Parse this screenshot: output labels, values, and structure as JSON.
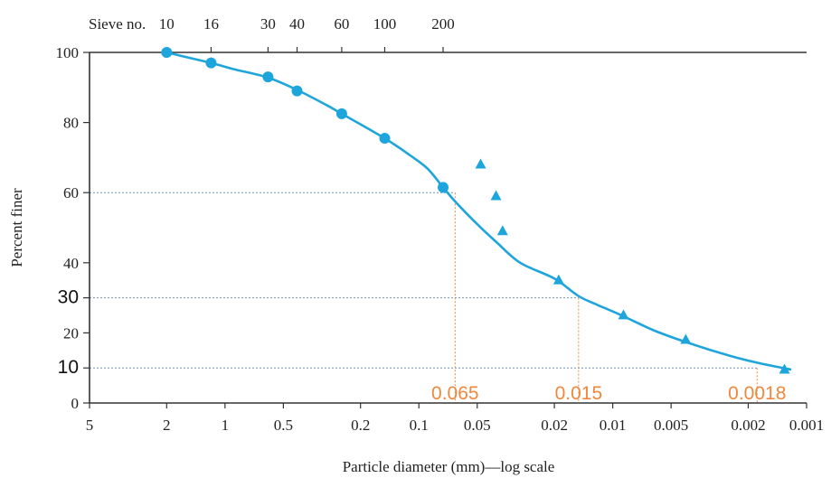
{
  "chart_data": {
    "type": "scatter",
    "x_scale": "log",
    "x_reversed": true,
    "xlim": [
      5,
      0.001
    ],
    "ylim": [
      0,
      100
    ],
    "xlabel": "Particle diameter (mm)—log scale",
    "ylabel": "Percent finer",
    "x_ticks": [
      {
        "value": 5,
        "label": "5"
      },
      {
        "value": 2,
        "label": "2"
      },
      {
        "value": 1,
        "label": "1"
      },
      {
        "value": 0.5,
        "label": "0.5"
      },
      {
        "value": 0.2,
        "label": "0.2"
      },
      {
        "value": 0.1,
        "label": "0.1"
      },
      {
        "value": 0.05,
        "label": "0.05"
      },
      {
        "value": 0.02,
        "label": "0.02"
      },
      {
        "value": 0.01,
        "label": "0.01"
      },
      {
        "value": 0.005,
        "label": "0.005"
      },
      {
        "value": 0.002,
        "label": "0.002"
      },
      {
        "value": 0.001,
        "label": "0.001"
      }
    ],
    "y_ticks": [
      {
        "value": 0,
        "label": "0",
        "emphasis": false
      },
      {
        "value": 10,
        "label": "10",
        "emphasis": true
      },
      {
        "value": 20,
        "label": "20",
        "emphasis": false
      },
      {
        "value": 30,
        "label": "30",
        "emphasis": true
      },
      {
        "value": 40,
        "label": "40",
        "emphasis": false
      },
      {
        "value": 60,
        "label": "60",
        "emphasis": false
      },
      {
        "value": 80,
        "label": "80",
        "emphasis": false
      },
      {
        "value": 100,
        "label": "100",
        "emphasis": false
      }
    ],
    "top_axis": {
      "title": "Sieve no.",
      "ticks": [
        {
          "value": 2.0,
          "label": "10"
        },
        {
          "value": 1.18,
          "label": "16"
        },
        {
          "value": 0.6,
          "label": "30"
        },
        {
          "value": 0.425,
          "label": "40"
        },
        {
          "value": 0.25,
          "label": "60"
        },
        {
          "value": 0.15,
          "label": "100"
        },
        {
          "value": 0.075,
          "label": "200"
        }
      ]
    },
    "series": [
      {
        "marker": "circle",
        "color": "#1ea5dc",
        "points": [
          {
            "x": 2.0,
            "y": 100
          },
          {
            "x": 1.18,
            "y": 97
          },
          {
            "x": 0.6,
            "y": 93
          },
          {
            "x": 0.425,
            "y": 89
          },
          {
            "x": 0.25,
            "y": 82.5
          },
          {
            "x": 0.15,
            "y": 75.5
          },
          {
            "x": 0.075,
            "y": 61.5
          }
        ]
      },
      {
        "marker": "triangle",
        "color": "#1ea5dc",
        "points": [
          {
            "x": 0.048,
            "y": 68
          },
          {
            "x": 0.04,
            "y": 59
          },
          {
            "x": 0.037,
            "y": 49
          },
          {
            "x": 0.019,
            "y": 35
          },
          {
            "x": 0.0088,
            "y": 25
          },
          {
            "x": 0.0042,
            "y": 18
          },
          {
            "x": 0.0013,
            "y": 9.5
          }
        ]
      }
    ],
    "curve": {
      "color": "#1ea5dc",
      "points": [
        [
          2.0,
          100
        ],
        [
          1.6,
          98.7
        ],
        [
          1.18,
          97
        ],
        [
          0.9,
          95.2
        ],
        [
          0.6,
          92.8
        ],
        [
          0.425,
          89.3
        ],
        [
          0.3,
          85
        ],
        [
          0.25,
          82.5
        ],
        [
          0.15,
          75.5
        ],
        [
          0.11,
          70.5
        ],
        [
          0.09,
          66.8
        ],
        [
          0.075,
          61.5
        ],
        [
          0.065,
          57.5
        ],
        [
          0.05,
          51
        ],
        [
          0.04,
          46
        ],
        [
          0.03,
          40
        ],
        [
          0.02,
          35.5
        ],
        [
          0.015,
          30.5
        ],
        [
          0.012,
          28
        ],
        [
          0.009,
          25
        ],
        [
          0.006,
          20.5
        ],
        [
          0.004,
          17
        ],
        [
          0.0025,
          13.5
        ],
        [
          0.0018,
          11.5
        ],
        [
          0.0012,
          9.5
        ]
      ]
    },
    "reference_lines": {
      "horizontal": [
        {
          "y": 60,
          "x_end": 0.065
        },
        {
          "y": 30,
          "x_end": 0.015
        },
        {
          "y": 10,
          "x_end": 0.0018
        }
      ],
      "vertical": [
        {
          "x": 0.065,
          "y_end": 60
        },
        {
          "x": 0.015,
          "y_end": 30
        },
        {
          "x": 0.0018,
          "y_end": 10
        }
      ]
    },
    "annotations": [
      {
        "text": "0.065",
        "x": 0.065,
        "color": "#f0873c"
      },
      {
        "text": "0.015",
        "x": 0.015,
        "color": "#f0873c"
      },
      {
        "text": "0.0018",
        "x": 0.0018,
        "color": "#f0873c"
      }
    ],
    "grid": false,
    "legend": "none"
  }
}
